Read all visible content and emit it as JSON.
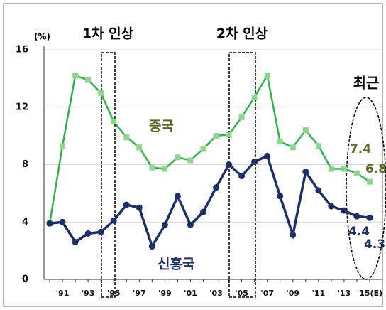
{
  "chart_data": {
    "type": "line",
    "unit_label": "(%)",
    "annotations": [
      "1차 인상",
      "2차 인상",
      "최근"
    ],
    "categories": [
      null,
      "'91",
      null,
      "'93",
      null,
      "'95",
      null,
      "'97",
      null,
      "'99",
      null,
      "'01",
      null,
      "'03",
      null,
      "'05",
      null,
      "'07",
      null,
      "'09",
      null,
      "'11",
      null,
      "'13",
      null,
      "'15(E)"
    ],
    "series": [
      {
        "name": "중국",
        "color": "#2db34a",
        "values": [
          3.9,
          9.3,
          14.2,
          13.9,
          13.0,
          11.0,
          9.9,
          9.2,
          7.8,
          7.7,
          8.5,
          8.3,
          9.1,
          10.0,
          10.1,
          11.3,
          12.7,
          14.2,
          9.6,
          9.2,
          10.4,
          9.3,
          7.7,
          7.7,
          7.4,
          6.8
        ]
      },
      {
        "name": "신흥국",
        "color": "#1b2f6b",
        "values": [
          3.9,
          4.0,
          2.6,
          3.2,
          3.3,
          4.1,
          5.2,
          5.0,
          2.3,
          3.8,
          5.8,
          3.8,
          4.7,
          6.4,
          8.0,
          7.2,
          8.2,
          8.6,
          5.8,
          3.1,
          7.5,
          6.2,
          5.1,
          4.8,
          4.4,
          4.3
        ]
      }
    ],
    "ylim": [
      0,
      16
    ],
    "yticks": [
      0,
      4,
      8,
      12,
      16
    ],
    "grid": true
  }
}
